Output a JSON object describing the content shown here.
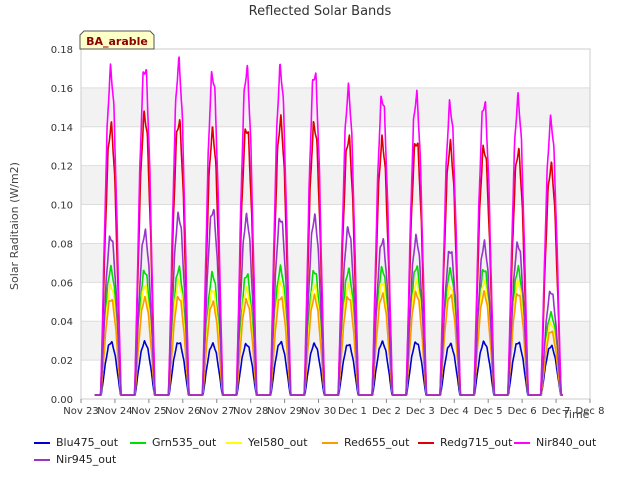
{
  "chart_data": {
    "type": "line",
    "title": "Reflected Solar Bands",
    "xlabel": "Time",
    "ylabel": "Solar Raditaion (W/m2)",
    "badge": "BA_arable",
    "ylim": [
      0,
      0.18
    ],
    "yticks": [
      "0.00",
      "0.02",
      "0.04",
      "0.06",
      "0.08",
      "0.10",
      "0.12",
      "0.14",
      "0.16",
      "0.18"
    ],
    "xlim": [
      0,
      15
    ],
    "xticks": [
      "Nov 23",
      "Nov 24",
      "Nov 25",
      "Nov 26",
      "Nov 27",
      "Nov 28",
      "Nov 29",
      "Nov 30",
      "Dec 1",
      "Dec 2",
      "Dec 3",
      "Dec 4",
      "Dec 5",
      "Dec 6",
      "Dec 7",
      "Dec 8"
    ],
    "day_centers": [
      0.88,
      1.88,
      2.88,
      3.88,
      4.88,
      5.88,
      6.88,
      7.88,
      8.88,
      9.88,
      10.88,
      11.88,
      12.88,
      13.85
    ],
    "night_value": 0.002,
    "series": [
      {
        "name": "Blu475_out",
        "color": "#0000cc",
        "peaks": [
          0.03,
          0.03,
          0.03,
          0.029,
          0.029,
          0.03,
          0.029,
          0.029,
          0.03,
          0.03,
          0.029,
          0.03,
          0.03,
          0.028
        ]
      },
      {
        "name": "Grn535_out",
        "color": "#00dd00",
        "peaks": [
          0.069,
          0.068,
          0.069,
          0.066,
          0.066,
          0.069,
          0.068,
          0.068,
          0.069,
          0.07,
          0.068,
          0.069,
          0.069,
          0.045
        ]
      },
      {
        "name": "Yel580_out",
        "color": "#ffff00",
        "peaks": [
          0.06,
          0.06,
          0.062,
          0.058,
          0.058,
          0.062,
          0.06,
          0.06,
          0.062,
          0.062,
          0.06,
          0.062,
          0.062,
          0.04
        ]
      },
      {
        "name": "Red655_out",
        "color": "#ff9900",
        "peaks": [
          0.053,
          0.053,
          0.054,
          0.051,
          0.052,
          0.054,
          0.054,
          0.054,
          0.055,
          0.056,
          0.055,
          0.056,
          0.056,
          0.036
        ]
      },
      {
        "name": "Redg715_out",
        "color": "#dd0000",
        "peaks": [
          0.144,
          0.15,
          0.147,
          0.141,
          0.144,
          0.147,
          0.145,
          0.138,
          0.136,
          0.137,
          0.134,
          0.133,
          0.131,
          0.123
        ]
      },
      {
        "name": "Nir840_out",
        "color": "#ff00ff",
        "peaks": [
          0.173,
          0.176,
          0.177,
          0.172,
          0.174,
          0.174,
          0.173,
          0.163,
          0.16,
          0.16,
          0.155,
          0.157,
          0.158,
          0.147
        ]
      },
      {
        "name": "Nir945_out",
        "color": "#9933cc",
        "peaks": [
          0.086,
          0.088,
          0.097,
          0.1,
          0.096,
          0.096,
          0.096,
          0.09,
          0.084,
          0.085,
          0.079,
          0.082,
          0.082,
          0.057
        ]
      }
    ]
  }
}
